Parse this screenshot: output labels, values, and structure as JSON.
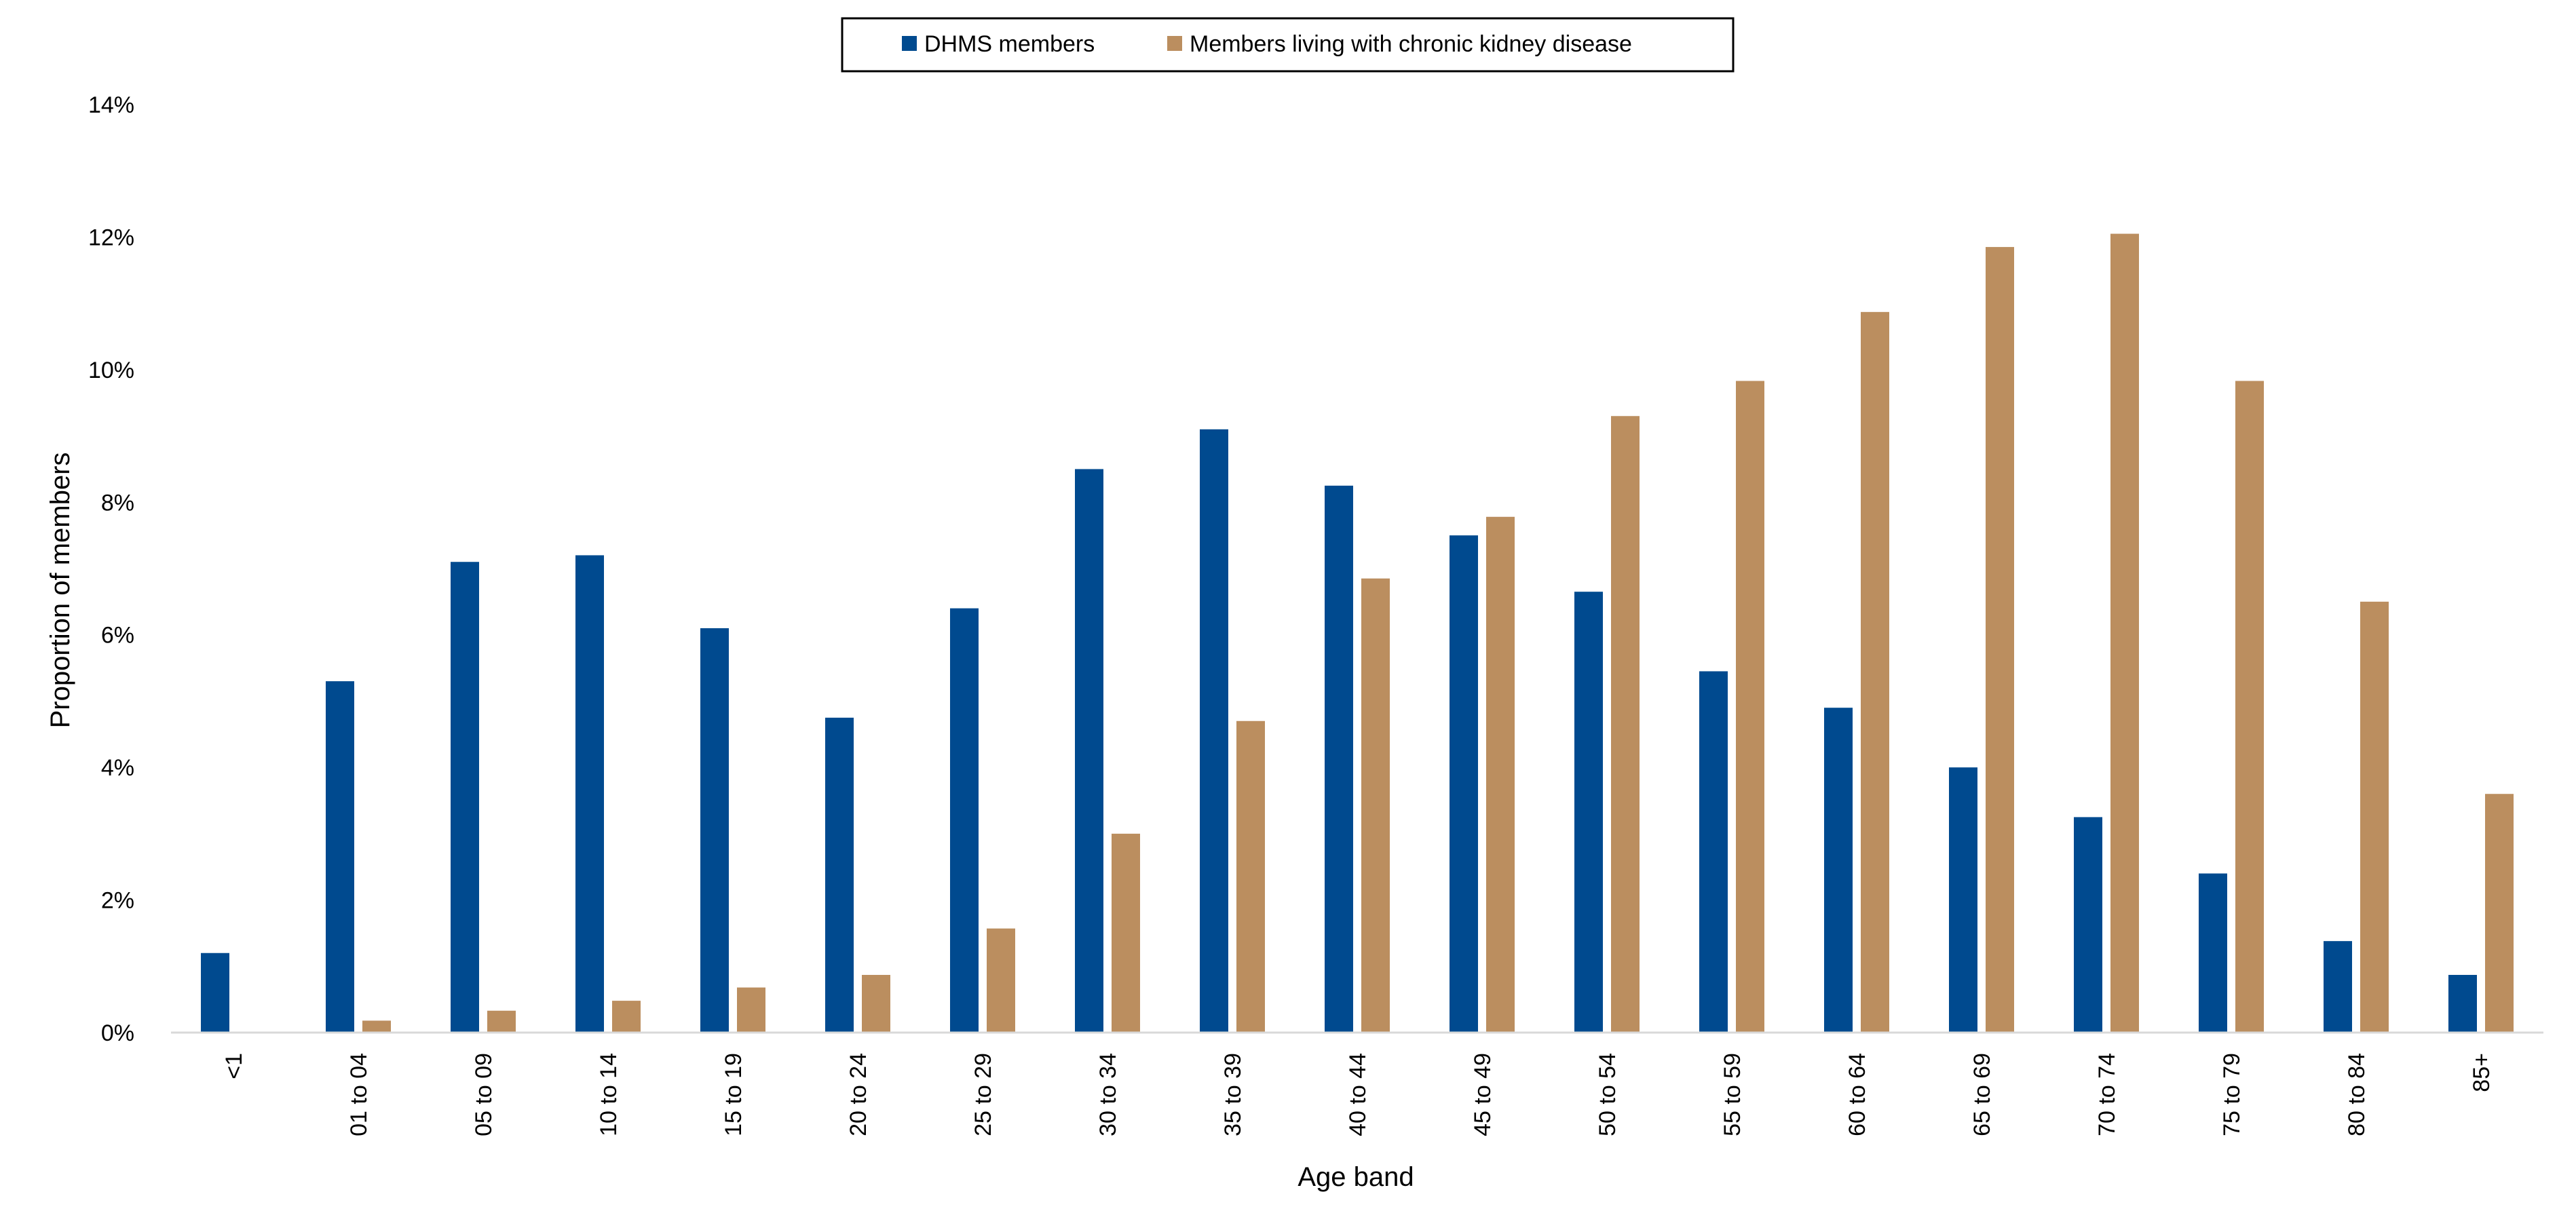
{
  "chart_data": {
    "type": "bar",
    "title": "",
    "xlabel": "Age band",
    "ylabel": "Proportion of members",
    "ylim": [
      0,
      14
    ],
    "yticks": [
      0,
      2,
      4,
      6,
      8,
      10,
      12,
      14
    ],
    "ytick_labels": [
      "0%",
      "2%",
      "4%",
      "6%",
      "8%",
      "10%",
      "12%",
      "14%"
    ],
    "grid": false,
    "legend_position": "top-center",
    "categories": [
      "<1",
      "01 to 04",
      "05 to 09",
      "10 to 14",
      "15 to 19",
      "20 to 24",
      "25 to 29",
      "30 to 34",
      "35 to 39",
      "40 to 44",
      "45 to 49",
      "50 to 54",
      "55 to 59",
      "60 to 64",
      "65 to 69",
      "70 to 74",
      "75 to 79",
      "80 to 84",
      "85+"
    ],
    "series": [
      {
        "name": "DHMS members",
        "color": "#004A8F",
        "values": [
          1.2,
          5.3,
          7.1,
          7.2,
          6.1,
          4.75,
          6.4,
          8.5,
          9.1,
          8.25,
          7.5,
          6.65,
          5.45,
          4.9,
          4.0,
          3.25,
          2.4,
          1.38,
          0.87
        ]
      },
      {
        "name": "Members living with chronic kidney disease",
        "color": "#BB8E5F",
        "values": [
          0,
          0.18,
          0.33,
          0.48,
          0.68,
          0.87,
          1.57,
          3.0,
          4.7,
          6.85,
          7.78,
          9.3,
          9.83,
          10.87,
          11.85,
          12.05,
          9.83,
          6.5,
          3.6
        ]
      }
    ]
  }
}
